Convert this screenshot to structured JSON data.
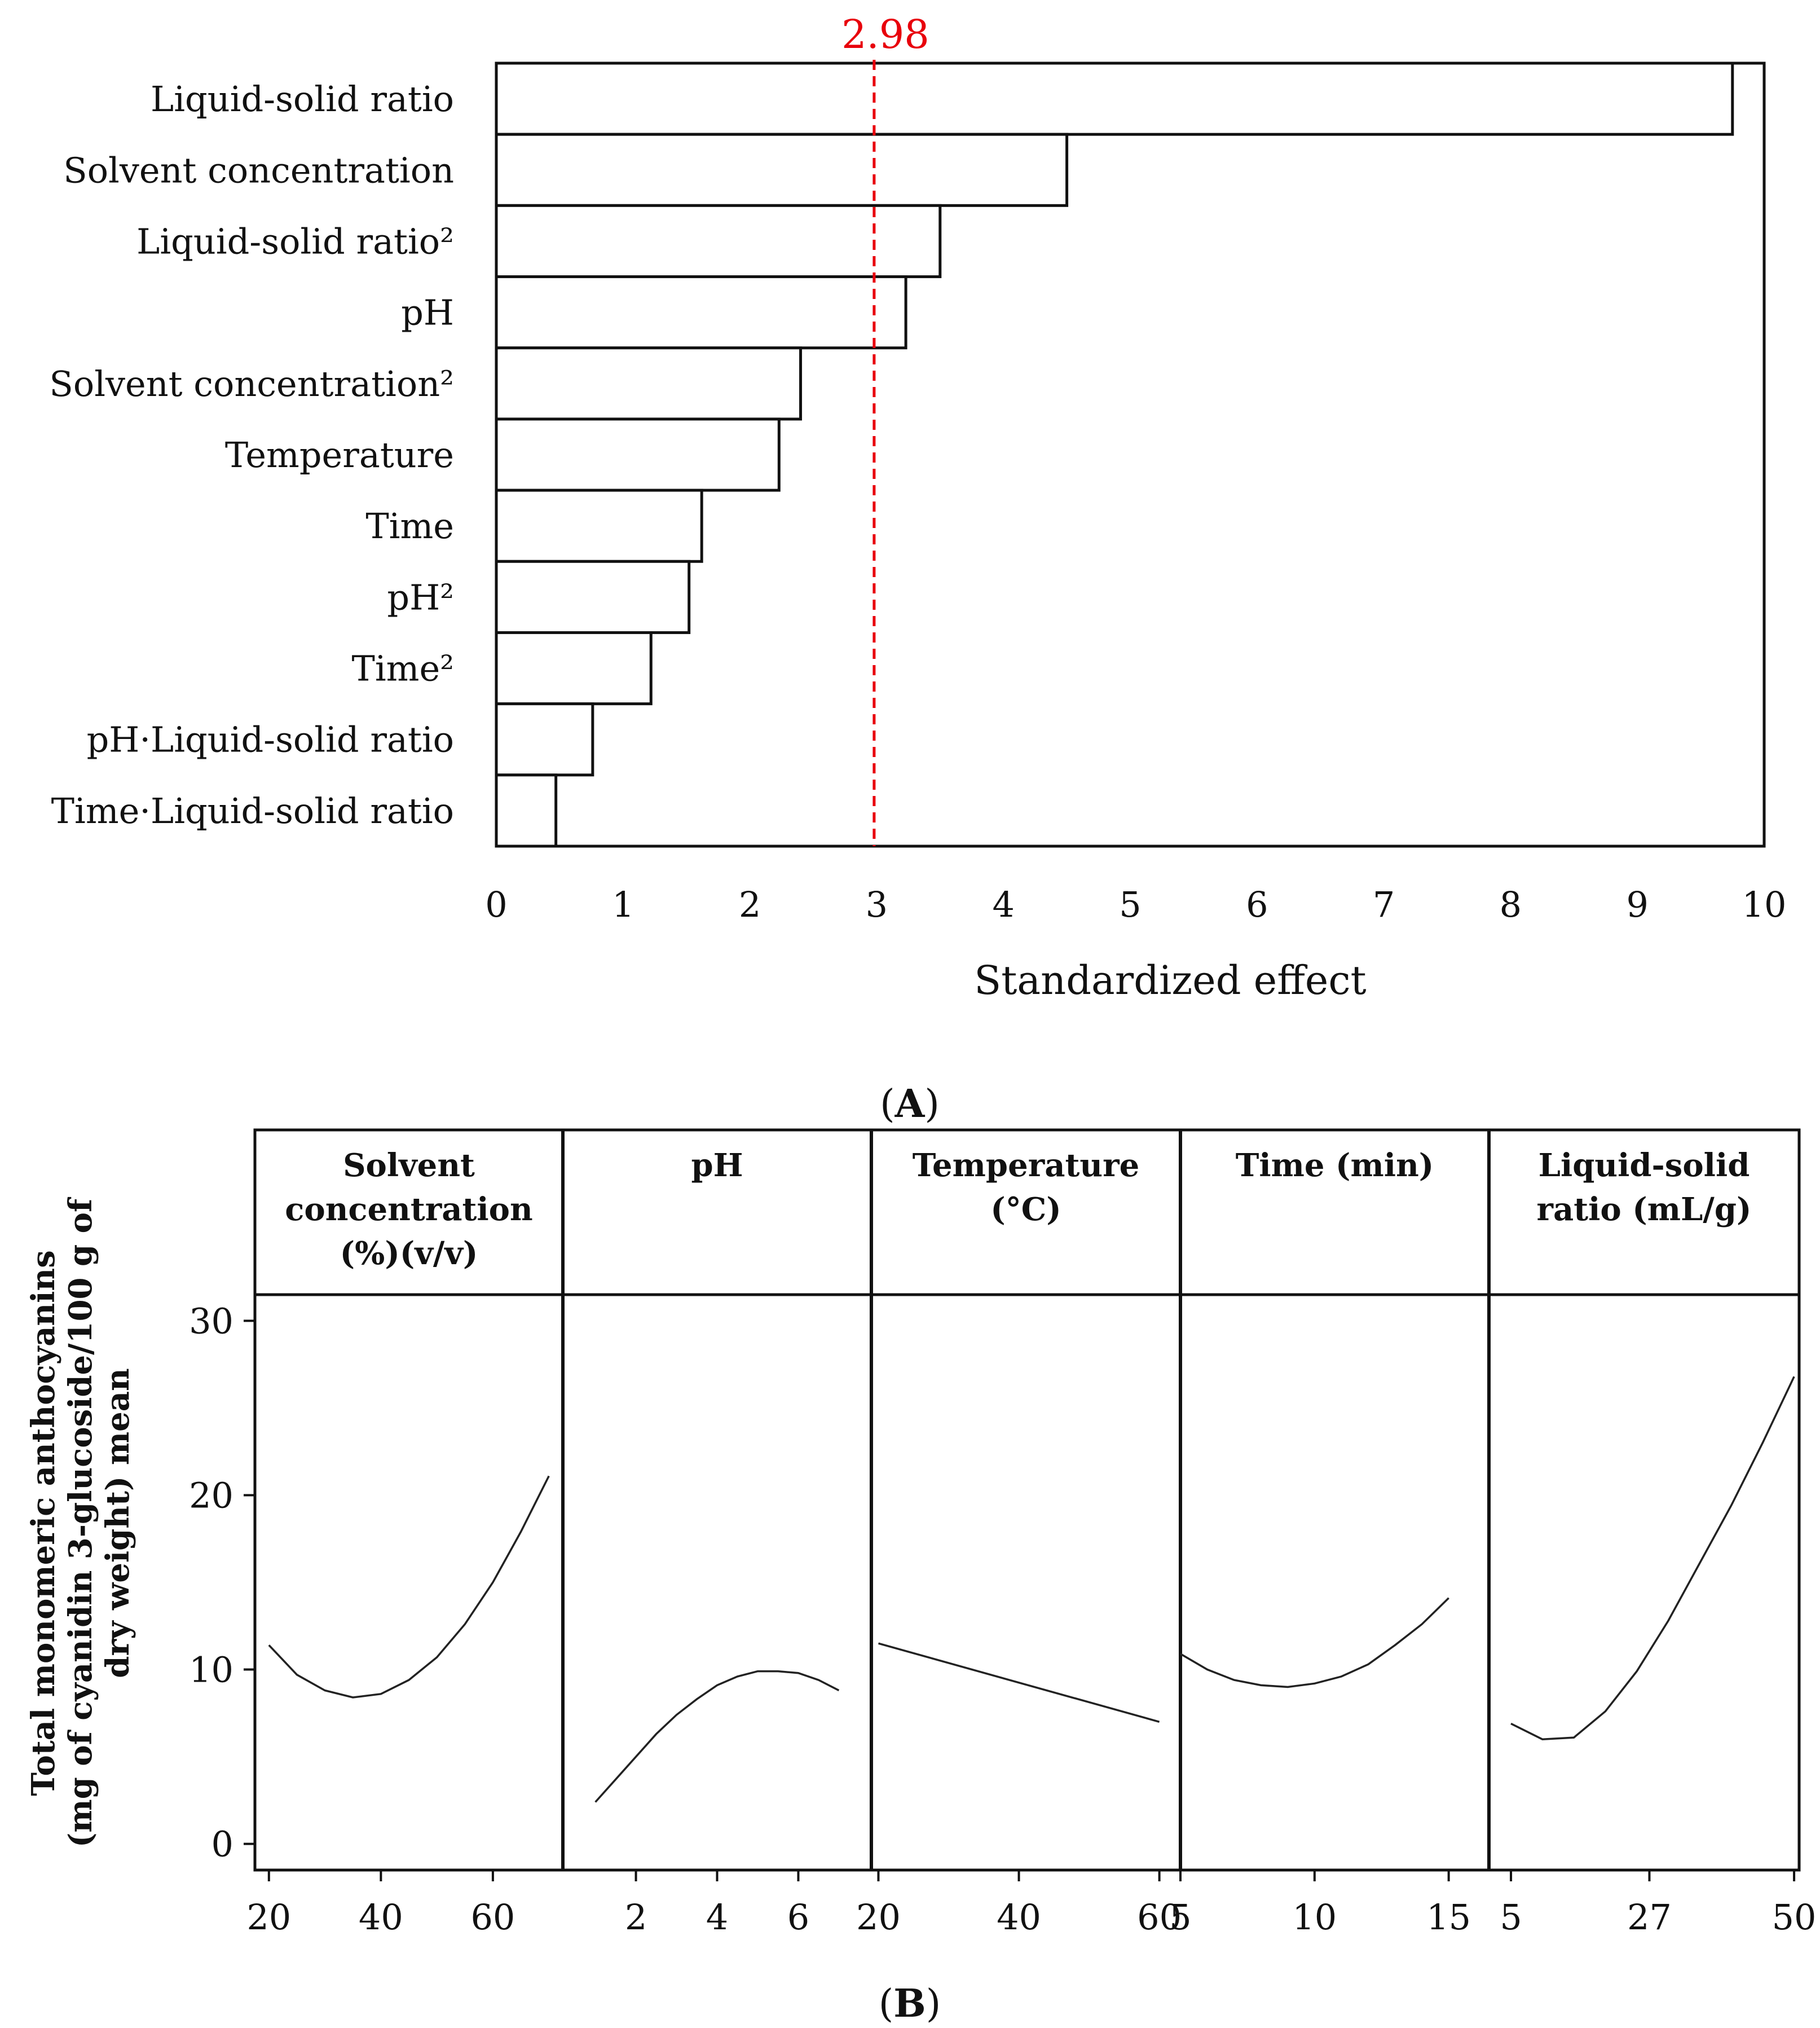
{
  "chart_data": [
    {
      "type": "bar",
      "orientation": "horizontal",
      "panel_label": "A",
      "categories": [
        "Liquid-solid ratio",
        "Solvent concentration",
        "Liquid-solid ratio²",
        "pH",
        "Solvent concentration²",
        "Temperature",
        "Time",
        "pH²",
        "Time²",
        "pH·Liquid-solid ratio",
        "Time·Liquid-solid ratio"
      ],
      "values": [
        9.75,
        4.5,
        3.5,
        3.23,
        2.4,
        2.23,
        1.62,
        1.52,
        1.22,
        0.76,
        0.47
      ],
      "xlabel": "Standardized effect",
      "xlim": [
        0,
        10
      ],
      "xticks": [
        "0",
        "1",
        "2",
        "3",
        "4",
        "5",
        "6",
        "7",
        "8",
        "9",
        "10"
      ],
      "reference_line": {
        "value": 2.98,
        "label": "2.98",
        "color": "#e8000b",
        "style": "dashed"
      }
    },
    {
      "type": "line",
      "panel_label": "B",
      "ylabel": [
        "Total monomeric anthocyanins",
        "(mg of cyanidin 3-glucoside/100 g of",
        "dry weight) mean"
      ],
      "ylim": [
        -1.5,
        31.5
      ],
      "yticks": [
        "0",
        "10",
        "20",
        "30"
      ],
      "panels": [
        {
          "header": [
            "Solvent",
            "concentration",
            "(%)(v/v)"
          ],
          "xlim": [
            17.5,
            72.5
          ],
          "xticks": [
            {
              "v": 20,
              "t": "20"
            },
            {
              "v": 40,
              "t": "40"
            },
            {
              "v": 60,
              "t": "60"
            }
          ],
          "x": [
            20,
            25,
            30,
            35,
            40,
            45,
            50,
            55,
            60,
            65,
            70
          ],
          "y": [
            11.4,
            9.7,
            8.8,
            8.4,
            8.6,
            9.4,
            10.7,
            12.6,
            15.0,
            17.9,
            21.1
          ]
        },
        {
          "header": [
            "pH"
          ],
          "xlim": [
            0.2,
            7.8
          ],
          "xticks": [
            {
              "v": 2,
              "t": "2"
            },
            {
              "v": 4,
              "t": "4"
            },
            {
              "v": 6,
              "t": "6"
            }
          ],
          "x": [
            1.0,
            1.5,
            2.0,
            2.5,
            3.0,
            3.5,
            4.0,
            4.5,
            5.0,
            5.5,
            6.0,
            6.5,
            7.0
          ],
          "y": [
            2.4,
            3.7,
            5.0,
            6.3,
            7.4,
            8.3,
            9.1,
            9.6,
            9.9,
            9.9,
            9.8,
            9.4,
            8.8
          ]
        },
        {
          "header": [
            "Temperature",
            "(°C)"
          ],
          "xlim": [
            19,
            63
          ],
          "xticks": [
            {
              "v": 20,
              "t": "20"
            },
            {
              "v": 40,
              "t": "40"
            },
            {
              "v": 60,
              "t": "60"
            }
          ],
          "x": [
            20,
            60
          ],
          "y": [
            11.5,
            7.0
          ]
        },
        {
          "header": [
            "Time (min)"
          ],
          "xlim": [
            5,
            16.5
          ],
          "xticks": [
            {
              "v": 5,
              "t": "5"
            },
            {
              "v": 10,
              "t": "10"
            },
            {
              "v": 15,
              "t": "15"
            }
          ],
          "x": [
            5,
            6,
            7,
            8,
            9,
            10,
            11,
            12,
            13,
            14,
            15
          ],
          "y": [
            10.9,
            10.0,
            9.4,
            9.1,
            9.0,
            9.2,
            9.6,
            10.3,
            11.4,
            12.6,
            14.1
          ]
        },
        {
          "header": [
            "Liquid-solid",
            "ratio (mL/g)"
          ],
          "xlim": [
            1.5,
            50.8
          ],
          "xticks": [
            {
              "v": 5,
              "t": "5"
            },
            {
              "v": 27,
              "t": "27"
            },
            {
              "v": 50,
              "t": "50"
            }
          ],
          "x": [
            5,
            10,
            15,
            20,
            25,
            30,
            35,
            40,
            45,
            50
          ],
          "y": [
            6.9,
            6.0,
            6.1,
            7.6,
            9.9,
            12.8,
            16.1,
            19.4,
            23.0,
            26.8
          ]
        }
      ]
    }
  ],
  "captions": {
    "a": "A",
    "b": "B"
  }
}
